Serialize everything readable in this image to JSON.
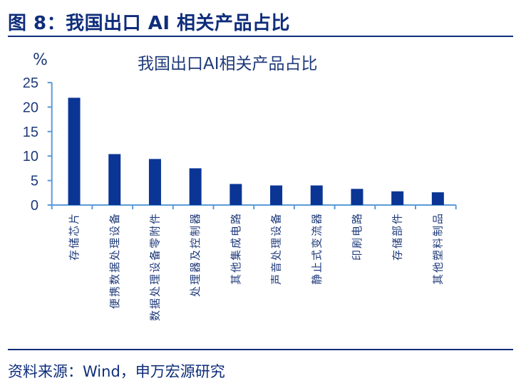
{
  "figure": {
    "title": "图 8：我国出口 AI 相关产品占比",
    "source": "资料来源：Wind，申万宏源研究"
  },
  "colors": {
    "bar": "#0a3595",
    "axis": "#5b9bd5",
    "text": "#1f3a7a",
    "rule": "#0e2d7a"
  },
  "chart_data": {
    "type": "bar",
    "title": "我国出口AI相关产品占比",
    "xlabel": "",
    "ylabel": "%",
    "ylim": [
      0,
      25
    ],
    "yticks": [
      0,
      5,
      10,
      15,
      20,
      25
    ],
    "grid": false,
    "legend": null,
    "categories": [
      "存储芯片",
      "便携数据处理设备",
      "数据处理设备零附件",
      "处理器及控制器",
      "其他集成电路",
      "声音处理设备",
      "静止式变流器",
      "印刷电路",
      "存储部件",
      "其他塑料制品"
    ],
    "values": [
      21.9,
      10.4,
      9.4,
      7.5,
      4.3,
      4.0,
      4.0,
      3.3,
      2.8,
      2.6
    ]
  }
}
